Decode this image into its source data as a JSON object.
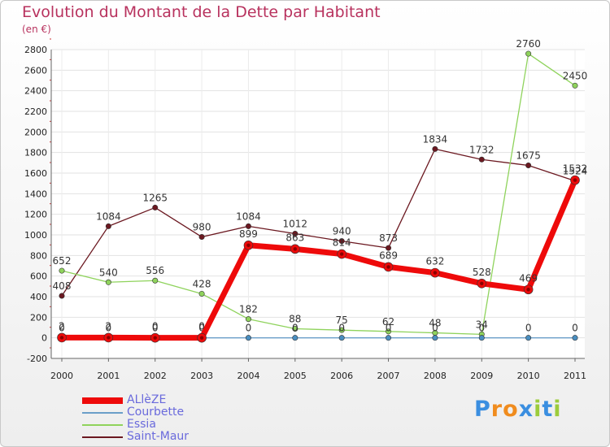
{
  "title": "Evolution du Montant de la Dette par Habitant",
  "subtitle": "(en €)",
  "brand": {
    "letters": [
      "P",
      "r",
      "o",
      "x",
      "i",
      "t",
      "i"
    ],
    "colors": [
      "#3a8ee0",
      "#f08c1e",
      "#f08c1e",
      "#3a8ee0",
      "#9ccc3c",
      "#3a8ee0",
      "#9ccc3c"
    ]
  },
  "chart_data": {
    "type": "line",
    "title": "Evolution du Montant de la Dette par Habitant",
    "ylabel": "(en €)",
    "xlabel": "",
    "x": [
      "2000",
      "2001",
      "2002",
      "2003",
      "2004",
      "2005",
      "2006",
      "2007",
      "2008",
      "2009",
      "2010",
      "2011"
    ],
    "ylim": [
      -200,
      2800
    ],
    "yticks": [
      "-200",
      "0",
      "200",
      "400",
      "600",
      "800",
      "1000",
      "1200",
      "1400",
      "1600",
      "1800",
      "2000",
      "2200",
      "2400",
      "2600",
      "2800"
    ],
    "grid": true,
    "legend_position": "bottom-left",
    "series": [
      {
        "name": "Saint-Maur",
        "color": "#6b1820",
        "values": [
          408,
          1084,
          1265,
          980,
          1084,
          1012,
          940,
          873,
          1834,
          1732,
          1675,
          1524
        ]
      },
      {
        "name": "Essia",
        "color": "#8fd35c",
        "values": [
          652,
          540,
          556,
          428,
          182,
          88,
          75,
          62,
          48,
          34,
          2760,
          2450
        ]
      },
      {
        "name": "Courbette",
        "color": "#6a9ec8",
        "values": [
          0,
          0,
          0,
          0,
          0,
          0,
          0,
          0,
          0,
          0,
          0,
          0
        ]
      },
      {
        "name": "ALlèZE",
        "color": "#ee0a0a",
        "values": [
          2,
          2,
          0,
          0,
          899,
          863,
          814,
          689,
          632,
          528,
          469,
          1532
        ]
      }
    ]
  }
}
